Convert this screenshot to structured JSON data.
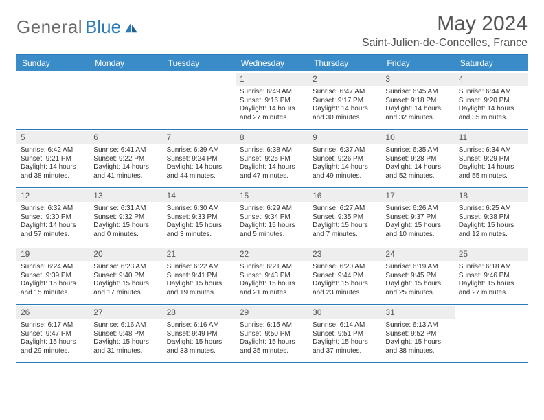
{
  "brand": {
    "name_gray": "General",
    "name_blue": "Blue"
  },
  "title": {
    "month": "May 2024",
    "location": "Saint-Julien-de-Concelles, France"
  },
  "colors": {
    "header_bar": "#3a8cc9",
    "top_rule": "#2a7ab8",
    "row_rule": "#2a7ab8",
    "daynum_bg": "#eeeeee",
    "text_gray": "#555555",
    "text_body": "#333333",
    "logo_gray": "#6b6b6b",
    "logo_blue": "#2a7ab8",
    "background": "#ffffff"
  },
  "dow": [
    "Sunday",
    "Monday",
    "Tuesday",
    "Wednesday",
    "Thursday",
    "Friday",
    "Saturday"
  ],
  "weeks": [
    [
      null,
      null,
      null,
      {
        "n": "1",
        "sr": "6:49 AM",
        "ss": "9:16 PM",
        "dl": "14 hours and 27 minutes."
      },
      {
        "n": "2",
        "sr": "6:47 AM",
        "ss": "9:17 PM",
        "dl": "14 hours and 30 minutes."
      },
      {
        "n": "3",
        "sr": "6:45 AM",
        "ss": "9:18 PM",
        "dl": "14 hours and 32 minutes."
      },
      {
        "n": "4",
        "sr": "6:44 AM",
        "ss": "9:20 PM",
        "dl": "14 hours and 35 minutes."
      }
    ],
    [
      {
        "n": "5",
        "sr": "6:42 AM",
        "ss": "9:21 PM",
        "dl": "14 hours and 38 minutes."
      },
      {
        "n": "6",
        "sr": "6:41 AM",
        "ss": "9:22 PM",
        "dl": "14 hours and 41 minutes."
      },
      {
        "n": "7",
        "sr": "6:39 AM",
        "ss": "9:24 PM",
        "dl": "14 hours and 44 minutes."
      },
      {
        "n": "8",
        "sr": "6:38 AM",
        "ss": "9:25 PM",
        "dl": "14 hours and 47 minutes."
      },
      {
        "n": "9",
        "sr": "6:37 AM",
        "ss": "9:26 PM",
        "dl": "14 hours and 49 minutes."
      },
      {
        "n": "10",
        "sr": "6:35 AM",
        "ss": "9:28 PM",
        "dl": "14 hours and 52 minutes."
      },
      {
        "n": "11",
        "sr": "6:34 AM",
        "ss": "9:29 PM",
        "dl": "14 hours and 55 minutes."
      }
    ],
    [
      {
        "n": "12",
        "sr": "6:32 AM",
        "ss": "9:30 PM",
        "dl": "14 hours and 57 minutes."
      },
      {
        "n": "13",
        "sr": "6:31 AM",
        "ss": "9:32 PM",
        "dl": "15 hours and 0 minutes."
      },
      {
        "n": "14",
        "sr": "6:30 AM",
        "ss": "9:33 PM",
        "dl": "15 hours and 3 minutes."
      },
      {
        "n": "15",
        "sr": "6:29 AM",
        "ss": "9:34 PM",
        "dl": "15 hours and 5 minutes."
      },
      {
        "n": "16",
        "sr": "6:27 AM",
        "ss": "9:35 PM",
        "dl": "15 hours and 7 minutes."
      },
      {
        "n": "17",
        "sr": "6:26 AM",
        "ss": "9:37 PM",
        "dl": "15 hours and 10 minutes."
      },
      {
        "n": "18",
        "sr": "6:25 AM",
        "ss": "9:38 PM",
        "dl": "15 hours and 12 minutes."
      }
    ],
    [
      {
        "n": "19",
        "sr": "6:24 AM",
        "ss": "9:39 PM",
        "dl": "15 hours and 15 minutes."
      },
      {
        "n": "20",
        "sr": "6:23 AM",
        "ss": "9:40 PM",
        "dl": "15 hours and 17 minutes."
      },
      {
        "n": "21",
        "sr": "6:22 AM",
        "ss": "9:41 PM",
        "dl": "15 hours and 19 minutes."
      },
      {
        "n": "22",
        "sr": "6:21 AM",
        "ss": "9:43 PM",
        "dl": "15 hours and 21 minutes."
      },
      {
        "n": "23",
        "sr": "6:20 AM",
        "ss": "9:44 PM",
        "dl": "15 hours and 23 minutes."
      },
      {
        "n": "24",
        "sr": "6:19 AM",
        "ss": "9:45 PM",
        "dl": "15 hours and 25 minutes."
      },
      {
        "n": "25",
        "sr": "6:18 AM",
        "ss": "9:46 PM",
        "dl": "15 hours and 27 minutes."
      }
    ],
    [
      {
        "n": "26",
        "sr": "6:17 AM",
        "ss": "9:47 PM",
        "dl": "15 hours and 29 minutes."
      },
      {
        "n": "27",
        "sr": "6:16 AM",
        "ss": "9:48 PM",
        "dl": "15 hours and 31 minutes."
      },
      {
        "n": "28",
        "sr": "6:16 AM",
        "ss": "9:49 PM",
        "dl": "15 hours and 33 minutes."
      },
      {
        "n": "29",
        "sr": "6:15 AM",
        "ss": "9:50 PM",
        "dl": "15 hours and 35 minutes."
      },
      {
        "n": "30",
        "sr": "6:14 AM",
        "ss": "9:51 PM",
        "dl": "15 hours and 37 minutes."
      },
      {
        "n": "31",
        "sr": "6:13 AM",
        "ss": "9:52 PM",
        "dl": "15 hours and 38 minutes."
      },
      null
    ]
  ],
  "labels": {
    "sunrise": "Sunrise:",
    "sunset": "Sunset:",
    "daylight": "Daylight:"
  }
}
